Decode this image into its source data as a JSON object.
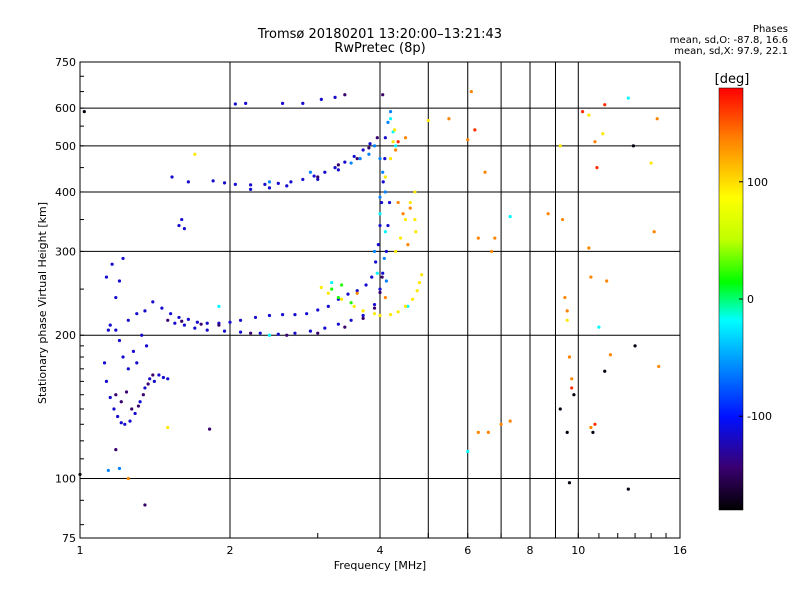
{
  "header": {
    "title": "Tromsø 20180201 13:20:00–13:21:43",
    "subtitle": "RwPretec (8p)"
  },
  "stats": {
    "heading": "Phases",
    "line_o": "mean, sd,O: -87.8, 16.6",
    "line_x": "mean, sd,X:  97.9, 22.1"
  },
  "chart_data": {
    "type": "scatter",
    "title": "Tromsø 20180201 13:20:00–13:21:43",
    "subtitle": "RwPretec (8p)",
    "xlabel": "Frequency [MHz]",
    "ylabel": "Stationary phase Virtual Height [km]",
    "x_scale": "log",
    "y_scale": "log",
    "xlim": [
      1,
      16
    ],
    "ylim": [
      75,
      750
    ],
    "x_ticks": [
      1,
      2,
      4,
      6,
      8,
      10,
      16
    ],
    "x_tick_labels": [
      "1",
      "2",
      "4",
      "6",
      "8",
      "10",
      "16"
    ],
    "y_ticks": [
      75,
      100,
      200,
      300,
      400,
      500,
      600,
      750
    ],
    "y_tick_labels": [
      "75",
      "100",
      "200",
      "300",
      "400",
      "500",
      "600",
      "750"
    ],
    "grid": true,
    "colorbar": {
      "label": "[deg]",
      "range": [
        -180,
        180
      ],
      "ticks": [
        -100,
        0,
        100
      ],
      "tick_labels": [
        "-100",
        "0",
        "100"
      ]
    },
    "series": [
      {
        "color_phase": -115,
        "points": [
          [
            1.13,
            265
          ],
          [
            1.16,
            282
          ],
          [
            1.18,
            240
          ],
          [
            1.2,
            260
          ],
          [
            1.22,
            290
          ],
          [
            1.15,
            210
          ],
          [
            1.14,
            205
          ],
          [
            1.12,
            175
          ],
          [
            1.13,
            160
          ],
          [
            1.15,
            148
          ],
          [
            1.17,
            140
          ],
          [
            1.19,
            135
          ],
          [
            1.21,
            131
          ],
          [
            1.23,
            130
          ],
          [
            1.26,
            132
          ],
          [
            1.29,
            137
          ],
          [
            1.32,
            145
          ],
          [
            1.35,
            155
          ],
          [
            1.38,
            162
          ],
          [
            1.41,
            160
          ],
          [
            1.44,
            165
          ],
          [
            1.47,
            163
          ],
          [
            1.5,
            162
          ],
          [
            1.36,
            190
          ],
          [
            1.33,
            200
          ],
          [
            1.3,
            175
          ],
          [
            1.28,
            185
          ],
          [
            1.25,
            170
          ],
          [
            1.22,
            180
          ],
          [
            1.2,
            195
          ],
          [
            1.18,
            205
          ],
          [
            1.25,
            215
          ],
          [
            1.3,
            222
          ],
          [
            1.35,
            225
          ],
          [
            1.4,
            235
          ],
          [
            1.46,
            228
          ],
          [
            1.52,
            222
          ],
          [
            1.58,
            218
          ],
          [
            1.65,
            216
          ],
          [
            1.72,
            213
          ],
          [
            1.8,
            212
          ],
          [
            1.9,
            212
          ],
          [
            2.0,
            213
          ],
          [
            2.1,
            215
          ],
          [
            2.25,
            218
          ],
          [
            2.4,
            220
          ],
          [
            2.55,
            221
          ],
          [
            2.7,
            221
          ],
          [
            2.85,
            222
          ],
          [
            3.0,
            226
          ],
          [
            3.15,
            230
          ],
          [
            3.3,
            238
          ],
          [
            3.45,
            244
          ],
          [
            3.6,
            248
          ],
          [
            3.75,
            255
          ],
          [
            3.85,
            265
          ],
          [
            3.92,
            285
          ],
          [
            3.97,
            310
          ],
          [
            4.0,
            340
          ],
          [
            4.03,
            380
          ],
          [
            4.06,
            420
          ],
          [
            4.09,
            470
          ],
          [
            4.1,
            520
          ],
          [
            1.55,
            212
          ],
          [
            1.62,
            210
          ],
          [
            1.7,
            207
          ],
          [
            1.8,
            205
          ],
          [
            1.95,
            204
          ],
          [
            2.1,
            203
          ],
          [
            2.3,
            202
          ],
          [
            2.5,
            201
          ],
          [
            2.7,
            202
          ],
          [
            2.9,
            204
          ],
          [
            3.1,
            207
          ],
          [
            3.3,
            211
          ],
          [
            3.5,
            215
          ],
          [
            3.7,
            220
          ],
          [
            3.9,
            232
          ],
          [
            4.0,
            250
          ],
          [
            4.05,
            270
          ],
          [
            4.12,
            300
          ],
          [
            4.15,
            340
          ],
          [
            4.18,
            380
          ],
          [
            1.85,
            422
          ],
          [
            1.95,
            418
          ],
          [
            2.05,
            415
          ],
          [
            2.2,
            414
          ],
          [
            2.35,
            415
          ],
          [
            2.5,
            417
          ],
          [
            2.65,
            420
          ],
          [
            2.8,
            425
          ],
          [
            2.95,
            432
          ],
          [
            3.1,
            440
          ],
          [
            3.25,
            450
          ],
          [
            3.4,
            462
          ],
          [
            3.55,
            475
          ],
          [
            3.7,
            490
          ],
          [
            3.82,
            505
          ],
          [
            2.2,
            405
          ],
          [
            2.4,
            408
          ],
          [
            2.6,
            412
          ],
          [
            3.0,
            425
          ],
          [
            3.3,
            445
          ],
          [
            1.58,
            340
          ],
          [
            1.6,
            350
          ],
          [
            1.62,
            335
          ],
          [
            1.53,
            430
          ],
          [
            1.65,
            420
          ],
          [
            2.05,
            612
          ],
          [
            2.15,
            614
          ],
          [
            2.55,
            614
          ],
          [
            2.8,
            614
          ],
          [
            3.05,
            626
          ],
          [
            3.25,
            632
          ]
        ]
      },
      {
        "color_phase": -145,
        "points": [
          [
            1.18,
            150
          ],
          [
            1.21,
            145
          ],
          [
            1.24,
            152
          ],
          [
            1.27,
            140
          ],
          [
            1.31,
            142
          ],
          [
            1.34,
            150
          ],
          [
            1.37,
            158
          ],
          [
            1.4,
            165
          ],
          [
            1.5,
            215
          ],
          [
            1.6,
            214
          ],
          [
            1.75,
            211
          ],
          [
            1.9,
            210
          ],
          [
            2.2,
            202
          ],
          [
            2.6,
            200
          ],
          [
            3.0,
            202
          ],
          [
            3.4,
            208
          ],
          [
            3.7,
            217
          ],
          [
            3.9,
            228
          ],
          [
            4.0,
            246
          ],
          [
            4.04,
            265
          ],
          [
            3.0,
            430
          ],
          [
            3.3,
            456
          ],
          [
            3.6,
            470
          ],
          [
            3.8,
            495
          ],
          [
            3.95,
            520
          ],
          [
            4.05,
            640
          ],
          [
            3.4,
            640
          ],
          [
            1.18,
            115
          ],
          [
            1.35,
            88
          ],
          [
            1.82,
            127
          ]
        ]
      },
      {
        "color_phase": -60,
        "points": [
          [
            3.9,
            500
          ],
          [
            4.0,
            470
          ],
          [
            4.05,
            440
          ],
          [
            4.1,
            400
          ],
          [
            3.8,
            480
          ],
          [
            3.65,
            470
          ],
          [
            4.15,
            560
          ],
          [
            4.2,
            590
          ],
          [
            3.5,
            460
          ],
          [
            2.9,
            440
          ],
          [
            2.4,
            420
          ],
          [
            4.0,
            390
          ],
          [
            1.14,
            104
          ],
          [
            1.2,
            105
          ],
          [
            3.9,
            300
          ],
          [
            4.08,
            290
          ],
          [
            4.12,
            260
          ]
        ]
      },
      {
        "color_phase": -20,
        "points": [
          [
            4.2,
            570
          ],
          [
            4.25,
            535
          ],
          [
            4.3,
            500
          ],
          [
            4.0,
            360
          ],
          [
            4.1,
            330
          ],
          [
            3.95,
            270
          ],
          [
            4.55,
            230
          ],
          [
            6.0,
            114
          ],
          [
            11.0,
            208
          ],
          [
            12.6,
            630
          ],
          [
            7.3,
            355
          ],
          [
            3.2,
            258
          ],
          [
            1.9,
            230
          ],
          [
            2.4,
            200
          ]
        ]
      },
      {
        "color_phase": 20,
        "points": [
          [
            3.3,
            240
          ],
          [
            3.5,
            234
          ],
          [
            3.2,
            250
          ],
          [
            3.35,
            255
          ]
        ]
      },
      {
        "color_phase": 95,
        "points": [
          [
            3.7,
            225
          ],
          [
            3.9,
            222
          ],
          [
            4.0,
            220
          ],
          [
            4.2,
            221
          ],
          [
            4.35,
            224
          ],
          [
            4.5,
            230
          ],
          [
            4.65,
            238
          ],
          [
            4.75,
            248
          ],
          [
            4.8,
            258
          ],
          [
            4.85,
            268
          ],
          [
            3.05,
            252
          ],
          [
            3.15,
            245
          ],
          [
            3.35,
            238
          ],
          [
            3.55,
            230
          ],
          [
            4.3,
            300
          ],
          [
            4.4,
            320
          ],
          [
            4.5,
            350
          ],
          [
            4.6,
            380
          ],
          [
            4.7,
            400
          ],
          [
            4.7,
            350
          ],
          [
            4.72,
            330
          ],
          [
            4.1,
            430
          ],
          [
            4.2,
            470
          ],
          [
            4.25,
            510
          ],
          [
            4.28,
            540
          ],
          [
            5.0,
            565
          ],
          [
            9.5,
            215
          ],
          [
            10.5,
            580
          ],
          [
            11.2,
            530
          ],
          [
            14.0,
            460
          ],
          [
            1.5,
            128
          ],
          [
            1.7,
            480
          ],
          [
            9.2,
            500
          ]
        ]
      },
      {
        "color_phase": 135,
        "points": [
          [
            4.35,
            380
          ],
          [
            4.45,
            360
          ],
          [
            4.6,
            370
          ],
          [
            4.55,
            310
          ],
          [
            4.1,
            240
          ],
          [
            3.6,
            245
          ],
          [
            4.3,
            490
          ],
          [
            4.5,
            520
          ],
          [
            5.5,
            570
          ],
          [
            6.0,
            515
          ],
          [
            6.5,
            440
          ],
          [
            6.1,
            650
          ],
          [
            6.3,
            320
          ],
          [
            6.7,
            300
          ],
          [
            6.8,
            320
          ],
          [
            8.7,
            360
          ],
          [
            9.3,
            350
          ],
          [
            9.4,
            240
          ],
          [
            9.5,
            225
          ],
          [
            9.6,
            180
          ],
          [
            9.7,
            162
          ],
          [
            10.5,
            305
          ],
          [
            10.6,
            265
          ],
          [
            10.8,
            510
          ],
          [
            11.4,
            260
          ],
          [
            11.6,
            182
          ],
          [
            14.5,
            172
          ],
          [
            14.2,
            330
          ],
          [
            14.4,
            570
          ],
          [
            1.25,
            100
          ],
          [
            6.3,
            125
          ],
          [
            6.6,
            125
          ],
          [
            7.0,
            130
          ],
          [
            7.3,
            132
          ],
          [
            10.6,
            128
          ]
        ]
      },
      {
        "color_phase": 165,
        "points": [
          [
            11.3,
            610
          ],
          [
            10.9,
            450
          ],
          [
            10.8,
            130
          ],
          [
            9.7,
            155
          ],
          [
            6.2,
            540
          ],
          [
            10.2,
            590
          ],
          [
            4.35,
            510
          ]
        ]
      },
      {
        "color_phase": -175,
        "points": [
          [
            9.6,
            98
          ],
          [
            9.8,
            150
          ],
          [
            9.5,
            125
          ],
          [
            10.7,
            125
          ],
          [
            12.6,
            95
          ],
          [
            11.3,
            168
          ],
          [
            12.9,
            500
          ],
          [
            13.0,
            190
          ],
          [
            9.2,
            140
          ],
          [
            1.0,
            102
          ],
          [
            1.02,
            590
          ]
        ]
      }
    ]
  }
}
